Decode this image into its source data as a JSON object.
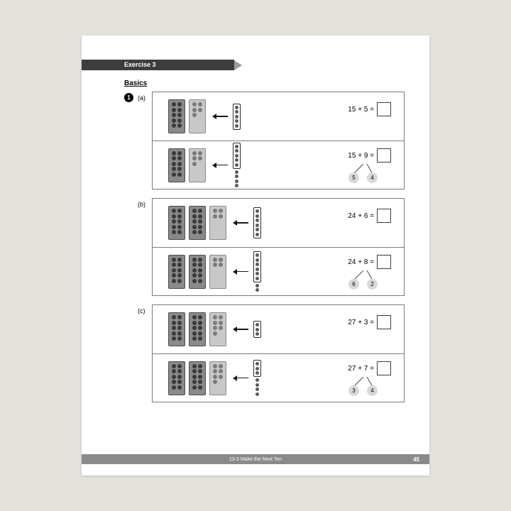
{
  "banner": {
    "title": "Exercise 3"
  },
  "section_title": "Basics",
  "question_number": "1",
  "colors": {
    "page_bg": "#ffffff",
    "outer_bg": "#e3e1dc",
    "banner_bg": "#3d3d3d",
    "banner_tri": "#9b9b9b",
    "footer_bg": "#8a8a8a",
    "block_dark": "#8a8a8a",
    "block_light": "#c8c8c8",
    "bond_circle": "#d8d8d8"
  },
  "subs": [
    {
      "label": "(a)",
      "rows": [
        {
          "equation": "15 + 5 =",
          "tens_dark": 1,
          "tens_light": 1,
          "light_dots": 5,
          "ones_in_box": 5,
          "extra_dots": 0,
          "bonds": null
        },
        {
          "equation": "15 + 9 =",
          "tens_dark": 1,
          "tens_light": 1,
          "light_dots": 5,
          "ones_in_box": 5,
          "extra_dots": 4,
          "bonds": {
            "left": "5",
            "right": "4"
          }
        }
      ]
    },
    {
      "label": "(b)",
      "rows": [
        {
          "equation": "24 + 6 =",
          "tens_dark": 2,
          "tens_light": 1,
          "light_dots": 4,
          "ones_in_box": 6,
          "extra_dots": 0,
          "bonds": null
        },
        {
          "equation": "24 + 8 =",
          "tens_dark": 2,
          "tens_light": 1,
          "light_dots": 4,
          "ones_in_box": 6,
          "extra_dots": 2,
          "bonds": {
            "left": "6",
            "right": "2"
          }
        }
      ]
    },
    {
      "label": "(c)",
      "rows": [
        {
          "equation": "27 + 3 =",
          "tens_dark": 2,
          "tens_light": 1,
          "light_dots": 7,
          "ones_in_box": 3,
          "extra_dots": 0,
          "bonds": null
        },
        {
          "equation": "27 + 7 =",
          "tens_dark": 2,
          "tens_light": 1,
          "light_dots": 7,
          "ones_in_box": 3,
          "extra_dots": 4,
          "bonds": {
            "left": "3",
            "right": "4"
          }
        }
      ]
    }
  ],
  "footer": {
    "text": "13-3  Make the Next Ten",
    "page": "45"
  }
}
